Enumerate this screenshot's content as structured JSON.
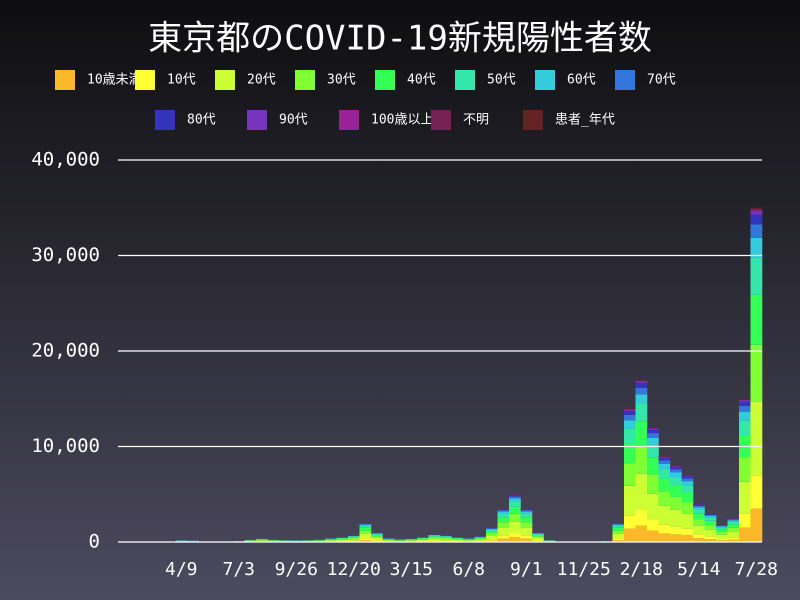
{
  "chart_data": {
    "type": "stacked-bar",
    "title": "東京都のCOVID-19新規陽性者数",
    "categories": [
      null,
      null,
      null,
      null,
      null,
      "4/9",
      null,
      null,
      null,
      null,
      "7/3",
      null,
      null,
      null,
      null,
      "9/26",
      null,
      null,
      null,
      null,
      "12/20",
      null,
      null,
      null,
      null,
      "3/15",
      null,
      null,
      null,
      null,
      "6/8",
      null,
      null,
      null,
      null,
      "9/1",
      null,
      null,
      null,
      null,
      "11/25",
      null,
      null,
      null,
      null,
      "2/18",
      null,
      null,
      null,
      null,
      "5/14",
      null,
      null,
      null,
      null,
      "7/28"
    ],
    "ylim": [
      0,
      40000
    ],
    "yticks": [
      0,
      {
        "value": 10000,
        "label": "10,000"
      },
      {
        "value": 20000,
        "label": "20,000"
      },
      {
        "value": 30000,
        "label": "30,000"
      },
      {
        "value": 40000,
        "label": "40,000"
      }
    ],
    "grid": true,
    "series": [
      {
        "name": "10歳未満",
        "color": "#fbb829",
        "values": [
          0,
          0,
          1,
          1,
          4,
          18,
          15,
          6,
          1,
          2,
          11,
          25,
          35,
          25,
          20,
          18,
          20,
          25,
          40,
          50,
          70,
          200,
          100,
          40,
          30,
          35,
          50,
          80,
          70,
          50,
          40,
          60,
          150,
          350,
          500,
          350,
          100,
          20,
          6,
          3,
          2,
          3,
          10,
          200,
          1400,
          1700,
          1200,
          900,
          800,
          700,
          400,
          300,
          180,
          250,
          1500,
          3500
        ]
      },
      {
        "name": "10代",
        "color": "#ffff33",
        "values": [
          0,
          0,
          1,
          1,
          4,
          18,
          15,
          6,
          1,
          2,
          11,
          25,
          35,
          25,
          20,
          18,
          20,
          25,
          40,
          50,
          70,
          200,
          100,
          40,
          30,
          35,
          50,
          80,
          70,
          50,
          40,
          60,
          150,
          350,
          500,
          350,
          100,
          20,
          6,
          3,
          2,
          3,
          10,
          200,
          1400,
          1700,
          1200,
          900,
          800,
          700,
          400,
          300,
          180,
          250,
          1500,
          3500
        ]
      },
      {
        "name": "20代",
        "color": "#ccff33",
        "values": [
          0,
          0,
          1,
          2,
          9,
          40,
          33,
          13,
          2,
          4,
          24,
          55,
          77,
          55,
          44,
          40,
          44,
          55,
          88,
          110,
          154,
          440,
          220,
          88,
          66,
          77,
          110,
          176,
          154,
          110,
          88,
          132,
          330,
          770,
          1100,
          770,
          220,
          44,
          13,
          7,
          4,
          7,
          22,
          440,
          3080,
          3740,
          2640,
          1980,
          1760,
          1540,
          880,
          660,
          396,
          550,
          3300,
          7700
        ]
      },
      {
        "name": "30代",
        "color": "#80ff33",
        "values": [
          0,
          0,
          1,
          2,
          7,
          31,
          26,
          10,
          2,
          3,
          19,
          43,
          60,
          43,
          34,
          31,
          34,
          43,
          68,
          85,
          119,
          340,
          170,
          68,
          51,
          60,
          85,
          136,
          119,
          85,
          68,
          102,
          255,
          595,
          850,
          595,
          170,
          34,
          10,
          5,
          3,
          5,
          17,
          340,
          2380,
          2890,
          2040,
          1530,
          1360,
          1190,
          680,
          510,
          306,
          425,
          2550,
          5950
        ]
      },
      {
        "name": "40代",
        "color": "#33ff55",
        "values": [
          0,
          0,
          1,
          2,
          6,
          27,
          23,
          9,
          2,
          3,
          17,
          38,
          53,
          38,
          30,
          27,
          30,
          38,
          60,
          75,
          105,
          300,
          150,
          60,
          45,
          53,
          75,
          120,
          105,
          75,
          60,
          90,
          225,
          525,
          750,
          525,
          150,
          30,
          9,
          5,
          3,
          5,
          15,
          300,
          2100,
          2550,
          1800,
          1350,
          1200,
          1050,
          600,
          450,
          270,
          375,
          2250,
          5250
        ]
      },
      {
        "name": "50代",
        "color": "#33e6aa",
        "values": [
          0,
          0,
          1,
          1,
          4,
          20,
          17,
          7,
          1,
          2,
          12,
          28,
          39,
          28,
          22,
          20,
          22,
          28,
          44,
          55,
          77,
          220,
          110,
          44,
          33,
          39,
          55,
          88,
          77,
          55,
          44,
          66,
          165,
          385,
          550,
          385,
          110,
          22,
          7,
          3,
          2,
          3,
          11,
          220,
          1540,
          1870,
          1320,
          990,
          880,
          770,
          440,
          330,
          198,
          275,
          1650,
          3850
        ]
      },
      {
        "name": "60代",
        "color": "#33ccdd",
        "values": [
          0,
          0,
          0,
          1,
          2,
          11,
          9,
          4,
          1,
          1,
          7,
          15,
          21,
          15,
          12,
          11,
          12,
          15,
          24,
          30,
          42,
          120,
          60,
          24,
          18,
          21,
          30,
          48,
          42,
          30,
          24,
          36,
          90,
          210,
          300,
          210,
          60,
          12,
          4,
          2,
          1,
          2,
          6,
          120,
          840,
          1020,
          720,
          540,
          480,
          420,
          240,
          180,
          108,
          150,
          900,
          2100
        ]
      },
      {
        "name": "70代",
        "color": "#3377dd",
        "values": [
          0,
          0,
          0,
          0,
          2,
          7,
          6,
          2,
          0,
          1,
          4,
          10,
          14,
          10,
          8,
          7,
          8,
          10,
          16,
          20,
          28,
          80,
          40,
          16,
          12,
          14,
          20,
          32,
          28,
          20,
          16,
          24,
          60,
          140,
          200,
          140,
          40,
          8,
          2,
          1,
          1,
          1,
          4,
          80,
          560,
          680,
          480,
          360,
          320,
          280,
          160,
          120,
          72,
          100,
          600,
          1400
        ]
      },
      {
        "name": "80代",
        "color": "#3333bb",
        "values": [
          0,
          0,
          0,
          0,
          1,
          5,
          5,
          2,
          0,
          1,
          3,
          8,
          11,
          8,
          6,
          5,
          6,
          8,
          12,
          15,
          21,
          60,
          30,
          12,
          9,
          11,
          15,
          24,
          21,
          15,
          12,
          18,
          45,
          105,
          150,
          105,
          30,
          6,
          2,
          1,
          1,
          1,
          3,
          60,
          420,
          510,
          360,
          270,
          240,
          210,
          120,
          90,
          54,
          75,
          450,
          1050
        ]
      },
      {
        "name": "90代",
        "color": "#7733bb",
        "values": [
          0,
          0,
          0,
          0,
          0,
          2,
          2,
          1,
          0,
          0,
          1,
          3,
          4,
          3,
          2,
          2,
          2,
          3,
          4,
          5,
          7,
          20,
          10,
          4,
          3,
          4,
          5,
          8,
          7,
          5,
          4,
          6,
          15,
          35,
          50,
          35,
          10,
          2,
          1,
          0,
          0,
          0,
          1,
          20,
          140,
          170,
          120,
          90,
          80,
          70,
          40,
          30,
          18,
          25,
          150,
          350
        ]
      },
      {
        "name": "100歳以上",
        "color": "#992299",
        "values": [
          0,
          0,
          0,
          0,
          0,
          0,
          0,
          0,
          0,
          0,
          0,
          0,
          1,
          0,
          0,
          0,
          0,
          0,
          1,
          1,
          1,
          4,
          2,
          1,
          1,
          1,
          1,
          2,
          1,
          1,
          1,
          1,
          3,
          7,
          10,
          7,
          2,
          0,
          0,
          0,
          0,
          0,
          0,
          4,
          28,
          34,
          24,
          18,
          16,
          14,
          8,
          6,
          4,
          5,
          30,
          70
        ]
      },
      {
        "name": "不明",
        "color": "#772255",
        "values": [
          0,
          0,
          0,
          0,
          0,
          1,
          1,
          0,
          0,
          0,
          0,
          1,
          1,
          1,
          1,
          1,
          1,
          1,
          2,
          2,
          3,
          8,
          4,
          2,
          1,
          1,
          2,
          3,
          3,
          2,
          2,
          2,
          6,
          14,
          20,
          14,
          4,
          1,
          0,
          0,
          0,
          0,
          0,
          8,
          56,
          68,
          48,
          36,
          32,
          28,
          16,
          12,
          7,
          10,
          60,
          140
        ]
      },
      {
        "name": "患者_年代",
        "color": "#662222",
        "values": [
          0,
          0,
          0,
          0,
          0,
          1,
          1,
          0,
          0,
          0,
          0,
          1,
          1,
          1,
          1,
          1,
          1,
          1,
          2,
          2,
          3,
          8,
          4,
          2,
          1,
          1,
          2,
          3,
          3,
          2,
          2,
          2,
          6,
          14,
          20,
          14,
          4,
          1,
          0,
          0,
          0,
          0,
          0,
          8,
          56,
          68,
          48,
          36,
          32,
          28,
          16,
          12,
          7,
          10,
          60,
          140
        ]
      }
    ]
  }
}
